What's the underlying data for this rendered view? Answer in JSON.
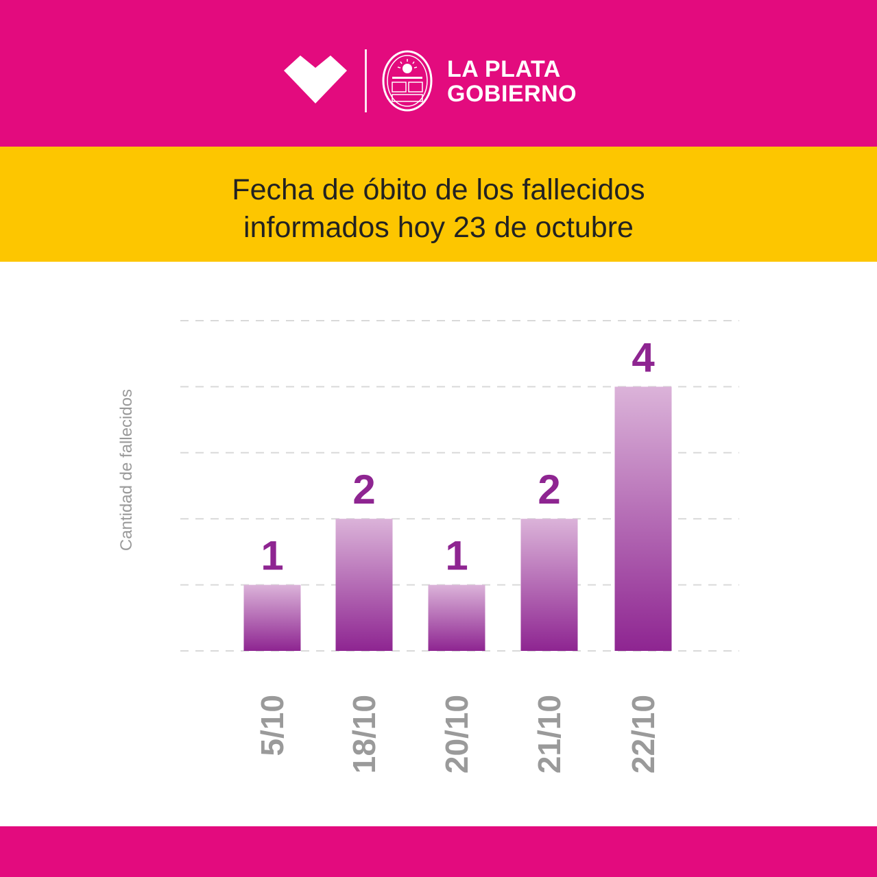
{
  "brand": {
    "line1": "LA PLATA",
    "line2": "GOBIERNO"
  },
  "title": {
    "line1": "Fecha de óbito de los fallecidos",
    "line2": "informados hoy 23 de octubre"
  },
  "colors": {
    "header": "#e30b7e",
    "title_band": "#fdc600",
    "bar_top": "#dbb3d9",
    "bar_bottom": "#8e2591",
    "value_label": "#8e2591",
    "tick_label": "#9a9a9a",
    "grid": "#d9d9d9"
  },
  "icons": {
    "brand_mark": "heart-icon",
    "seal": "city-seal-icon"
  },
  "chart_data": {
    "type": "bar",
    "categories": [
      "5/10",
      "18/10",
      "20/10",
      "21/10",
      "22/10"
    ],
    "values": [
      1,
      2,
      1,
      2,
      4
    ],
    "ylabel": "Cantidad de fallecidos",
    "ylim": [
      0,
      5
    ],
    "grid": true,
    "data_labels": [
      "1",
      "2",
      "1",
      "2",
      "4"
    ]
  }
}
